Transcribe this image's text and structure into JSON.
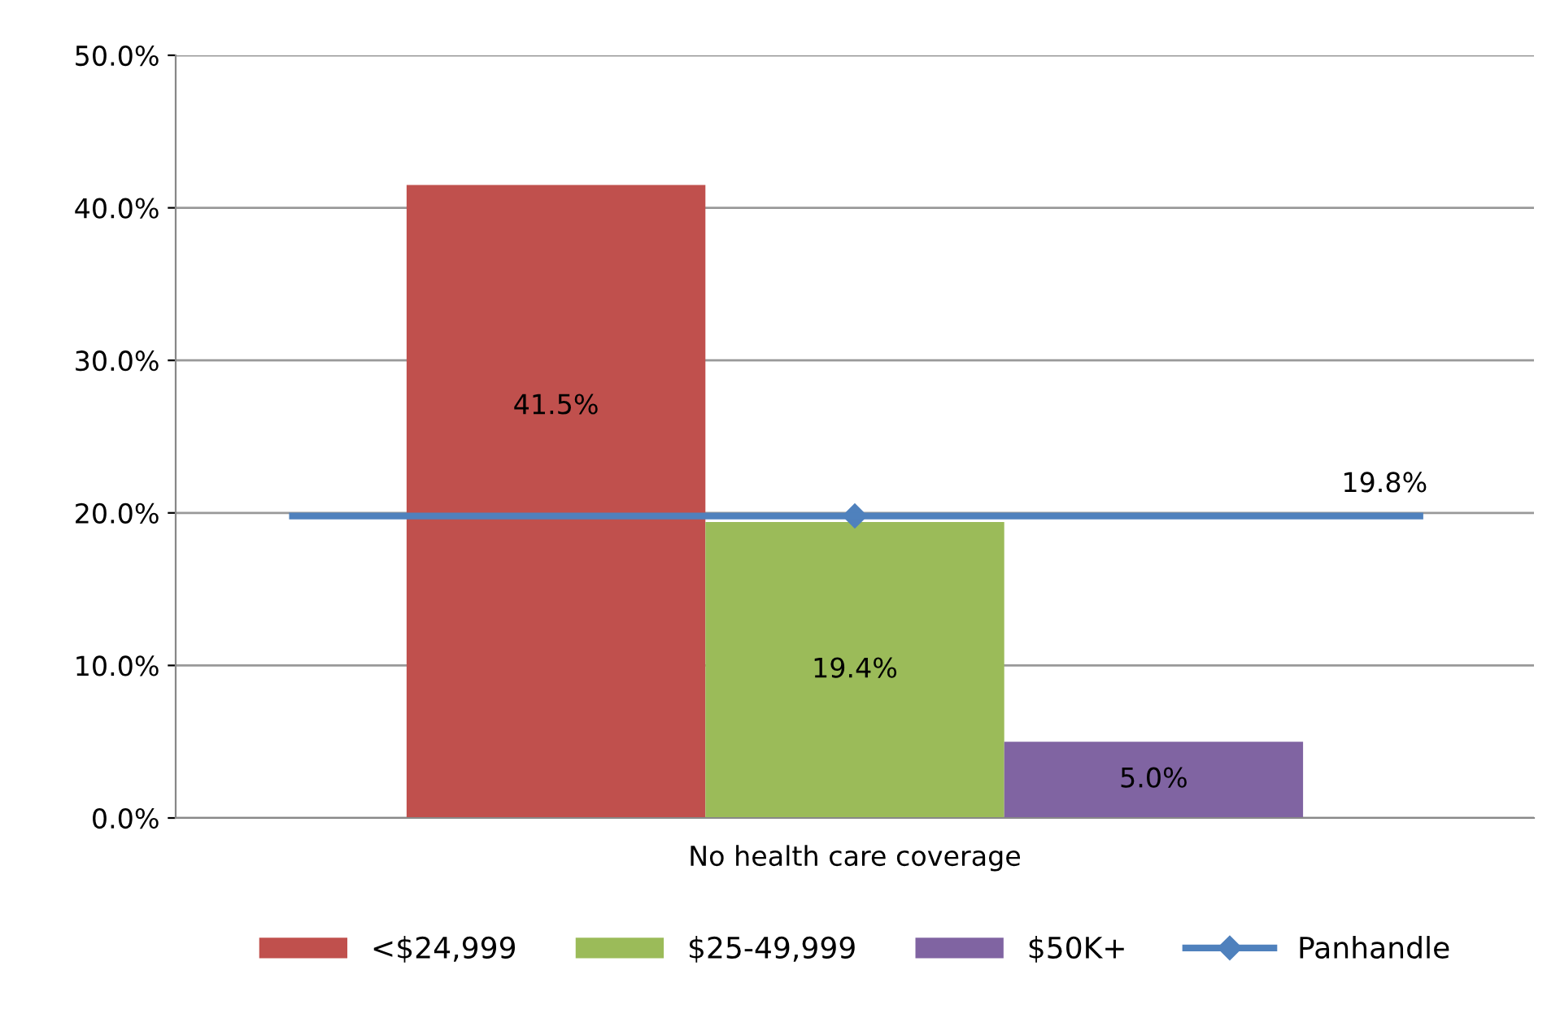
{
  "chart_data": {
    "type": "bar",
    "categories": [
      "No health care coverage"
    ],
    "series": [
      {
        "name": "<$24,999",
        "color": "#c0504d",
        "values": [
          41.5
        ]
      },
      {
        "name": "$25-49,999",
        "color": "#9bbb59",
        "values": [
          19.4
        ]
      },
      {
        "name": "$50K+",
        "color": "#8064a2",
        "values": [
          5.0
        ]
      },
      {
        "name": "Panhandle",
        "color": "#4f81bd",
        "values": [
          19.8
        ],
        "type": "line",
        "marker": "diamond"
      }
    ],
    "ylim": [
      0,
      50
    ],
    "yticks": [
      {
        "value": 0,
        "label": "0.0%"
      },
      {
        "value": 10,
        "label": "10.0%"
      },
      {
        "value": 20,
        "label": "20.0%"
      },
      {
        "value": 30,
        "label": "30.0%"
      },
      {
        "value": 40,
        "label": "40.0%"
      },
      {
        "value": 50,
        "label": "50.0%"
      }
    ],
    "ref_lines": [
      {
        "axis": "y",
        "value": 19.8,
        "color": "#4f81bd"
      }
    ],
    "grid": "y",
    "legend": "bottom",
    "value_labels": [
      "41.5%",
      "19.4%",
      "5.0%",
      "19.8%"
    ]
  }
}
